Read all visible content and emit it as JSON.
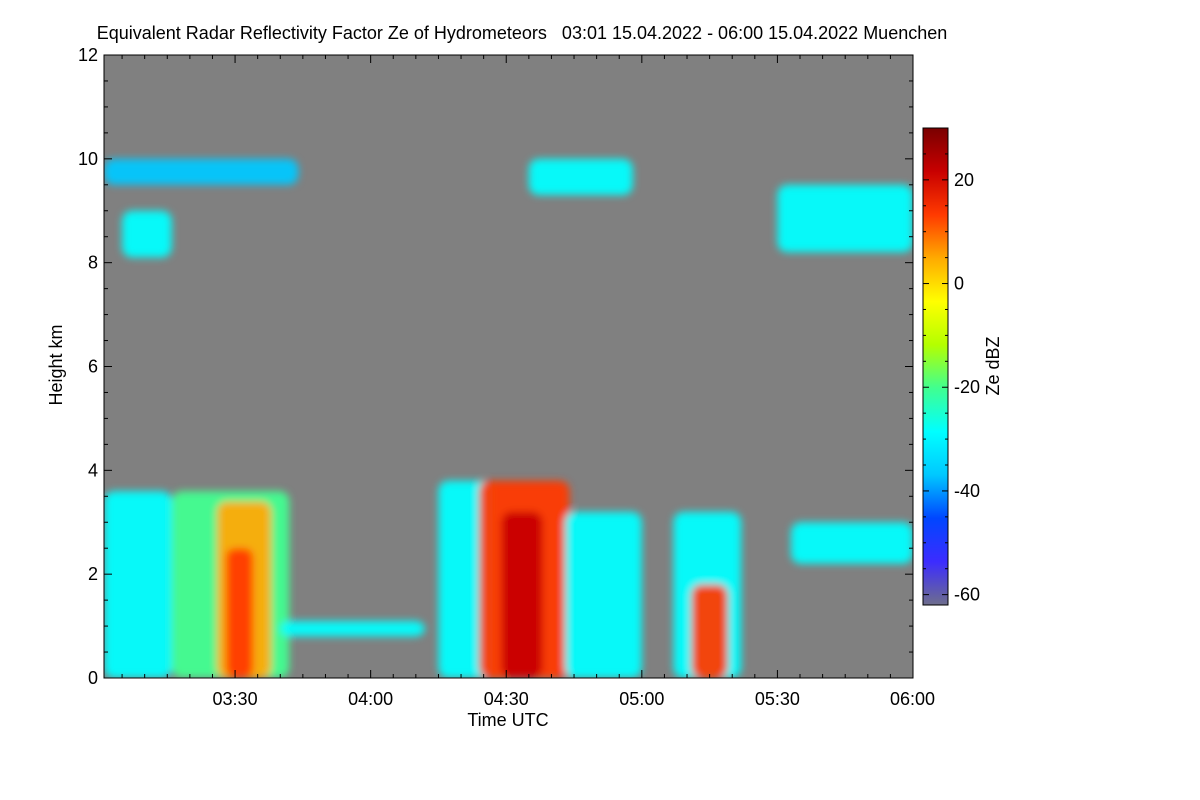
{
  "chart_data": {
    "type": "heatmap",
    "title": "Equivalent Radar Reflectivity Factor Ze of Hydrometeors   03:01 15.04.2022 - 06:00 15.04.2022 Muenchen",
    "xlabel": "Time UTC",
    "ylabel": "Height km",
    "colorbar_label": "Ze dBZ",
    "x_range_min": [
      181,
      360
    ],
    "y_range_km": [
      0,
      12
    ],
    "x_ticks": [
      {
        "label": "03:30",
        "min": 210
      },
      {
        "label": "04:00",
        "min": 240
      },
      {
        "label": "04:30",
        "min": 270
      },
      {
        "label": "05:00",
        "min": 300
      },
      {
        "label": "05:30",
        "min": 330
      },
      {
        "label": "06:00",
        "min": 360
      }
    ],
    "y_ticks": [
      0,
      2,
      4,
      6,
      8,
      10,
      12
    ],
    "colorbar_range_dbz": [
      -62,
      30
    ],
    "colorbar_ticks": [
      20,
      0,
      -20,
      -40,
      -60
    ],
    "background_color": "#808080",
    "colormap": [
      "#6e6e8c",
      "#3c2cff",
      "#0046ff",
      "#00c8ff",
      "#00ffff",
      "#40ff90",
      "#b4ff00",
      "#ffff00",
      "#ffaa00",
      "#ff3a00",
      "#c80000",
      "#7a0000"
    ],
    "echo_regions": [
      {
        "name": "low-cloud-0301",
        "t": [
          181,
          196
        ],
        "h": [
          0,
          3.6
        ],
        "dbz": -28
      },
      {
        "name": "rain-shaft-0320",
        "t": [
          196,
          222
        ],
        "h": [
          0,
          3.6
        ],
        "dbz": -20
      },
      {
        "name": "core-0325",
        "t": [
          206,
          218
        ],
        "h": [
          0,
          3.4
        ],
        "dbz": 5
      },
      {
        "name": "bright-0322",
        "t": [
          208,
          214
        ],
        "h": [
          0,
          2.5
        ],
        "dbz": 15
      },
      {
        "name": "low-layer-0340",
        "t": [
          220,
          252
        ],
        "h": [
          0.8,
          1.1
        ],
        "dbz": -30
      },
      {
        "name": "cell-0400",
        "t": [
          255,
          267
        ],
        "h": [
          0,
          3.8
        ],
        "dbz": -28
      },
      {
        "name": "core-0430",
        "t": [
          264,
          284
        ],
        "h": [
          0,
          3.8
        ],
        "dbz": 10
      },
      {
        "name": "max-0430",
        "t": [
          269,
          278
        ],
        "h": [
          0,
          3.2
        ],
        "dbz": 22
      },
      {
        "name": "trail-0440",
        "t": [
          283,
          300
        ],
        "h": [
          0,
          3.2
        ],
        "dbz": -30
      },
      {
        "name": "cell-0510",
        "t": [
          307,
          322
        ],
        "h": [
          0,
          3.2
        ],
        "dbz": -28
      },
      {
        "name": "core-0515",
        "t": [
          311,
          319
        ],
        "h": [
          0,
          1.8
        ],
        "dbz": 14
      },
      {
        "name": "cell-0540",
        "t": [
          333,
          360
        ],
        "h": [
          2.2,
          3.0
        ],
        "dbz": -32
      },
      {
        "name": "cirrus-left",
        "t": [
          181,
          224
        ],
        "h": [
          9.5,
          10.0
        ],
        "dbz": -40
      },
      {
        "name": "cirrus-0305",
        "t": [
          185,
          196
        ],
        "h": [
          8.1,
          9.0
        ],
        "dbz": -32
      },
      {
        "name": "cirrus-0430",
        "t": [
          275,
          298
        ],
        "h": [
          9.3,
          10.0
        ],
        "dbz": -28
      },
      {
        "name": "cirrus-0540",
        "t": [
          330,
          360
        ],
        "h": [
          8.2,
          9.5
        ],
        "dbz": -30
      }
    ]
  }
}
